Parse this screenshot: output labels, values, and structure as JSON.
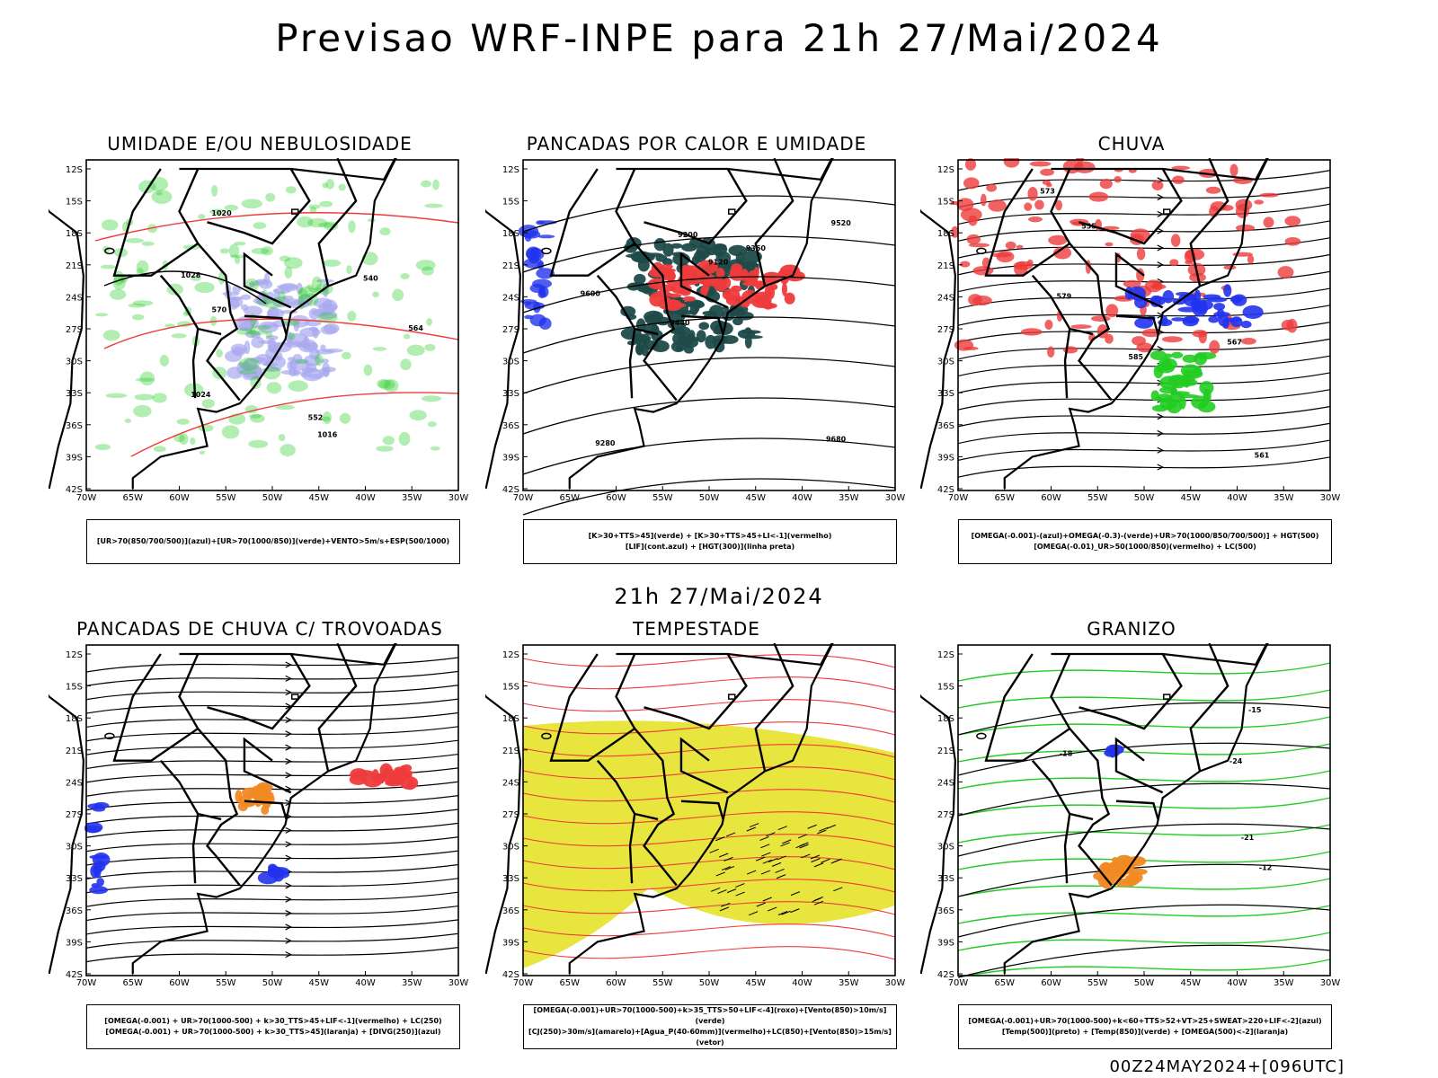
{
  "page": {
    "title": "Previsao WRF-INPE  para 21h 27/Mai/2024",
    "subtitle": "21h 27/Mai/2024",
    "footer": "00Z24MAY2024+[096UTC]"
  },
  "axes": {
    "lat_labels": [
      "12S",
      "15S",
      "18S",
      "21S",
      "24S",
      "27S",
      "30S",
      "33S",
      "36S",
      "39S",
      "42S"
    ],
    "lon_labels": [
      "70W",
      "65W",
      "60W",
      "55W",
      "50W",
      "45W",
      "40W",
      "35W",
      "30W"
    ]
  },
  "colors": {
    "green": "#22cc22",
    "red": "#ee3b3b",
    "blue": "#2233ee",
    "lavender": "#a8a8f0",
    "darkteal": "#1f4a4a",
    "orange": "#f08a24",
    "yellow": "#e6e22a"
  },
  "panels": [
    {
      "id": "umidade",
      "title": "UMIDADE E/OU NEBULOSIDADE",
      "legend": [
        "[UR>70(850/700/500)](azul)+[UR>70(1000/850)](verde)+VENTO>5m/s+ESP(500/1000)"
      ],
      "contour_labels": [
        "1016",
        "1020",
        "1024",
        "1028",
        "540",
        "552",
        "564",
        "570"
      ]
    },
    {
      "id": "pancadas-calor",
      "title": "PANCADAS POR CALOR E UMIDADE",
      "legend": [
        "[K>30+TTS>45](verde) + [K>30+TTS>45+LI<-1](vermelho)",
        "[LIF](cont.azul) + [HGT(300)](linha preta)"
      ],
      "contour_labels": [
        "9680",
        "9600",
        "9520",
        "9440",
        "9360",
        "9280",
        "9200",
        "9120"
      ]
    },
    {
      "id": "chuva",
      "title": "CHUVA",
      "legend": [
        "[OMEGA(-0.001)-(azul)+OMEGA(-0.3)-(verde)+UR>70(1000/850/700/500)] + HGT(500)",
        "[OMEGA(-0.01)_UR>50(1000/850)(vermelho) + LC(500)"
      ],
      "contour_labels": [
        "585",
        "579",
        "573",
        "567",
        "561",
        "555"
      ]
    },
    {
      "id": "pancadas-trovoadas",
      "title": "PANCADAS DE CHUVA C/ TROVOADAS",
      "legend": [
        "[OMEGA(-0.001) + UR>70(1000-500) + k>30_TTS>45+LIF<-1](vermelho) + LC(250)",
        "[OMEGA(-0.001) + UR>70(1000-500) + k>30_TTS>45](laranja) + [DIVG(250)](azul)"
      ]
    },
    {
      "id": "tempestade",
      "title": "TEMPESTADE",
      "legend": [
        "[OMEGA(-0.001)+UR>70(1000-500)+k>35_TTS>50+LIF<-4](roxo)+[Vento(850)>10m/s](verde)",
        "[CJ(250)>30m/s](amarelo)+[Agua_P(40-60mm)](vermelho)+LC(850)+[Vento(850)>15m/s](vetor)"
      ]
    },
    {
      "id": "granizo",
      "title": "GRANIZO",
      "legend": [
        "[OMEGA(-0.001)+UR>70(1000-500)+k<60+TTS>52+VT>25+SWEAT>220+LIF<-2](azul)",
        "[Temp(500)](preto) + [Temp(850)](verde) + [OMEGA(500)<-2](laranja)"
      ],
      "contour_labels": [
        "-12",
        "-15",
        "-18",
        "-21",
        "-24"
      ]
    }
  ]
}
